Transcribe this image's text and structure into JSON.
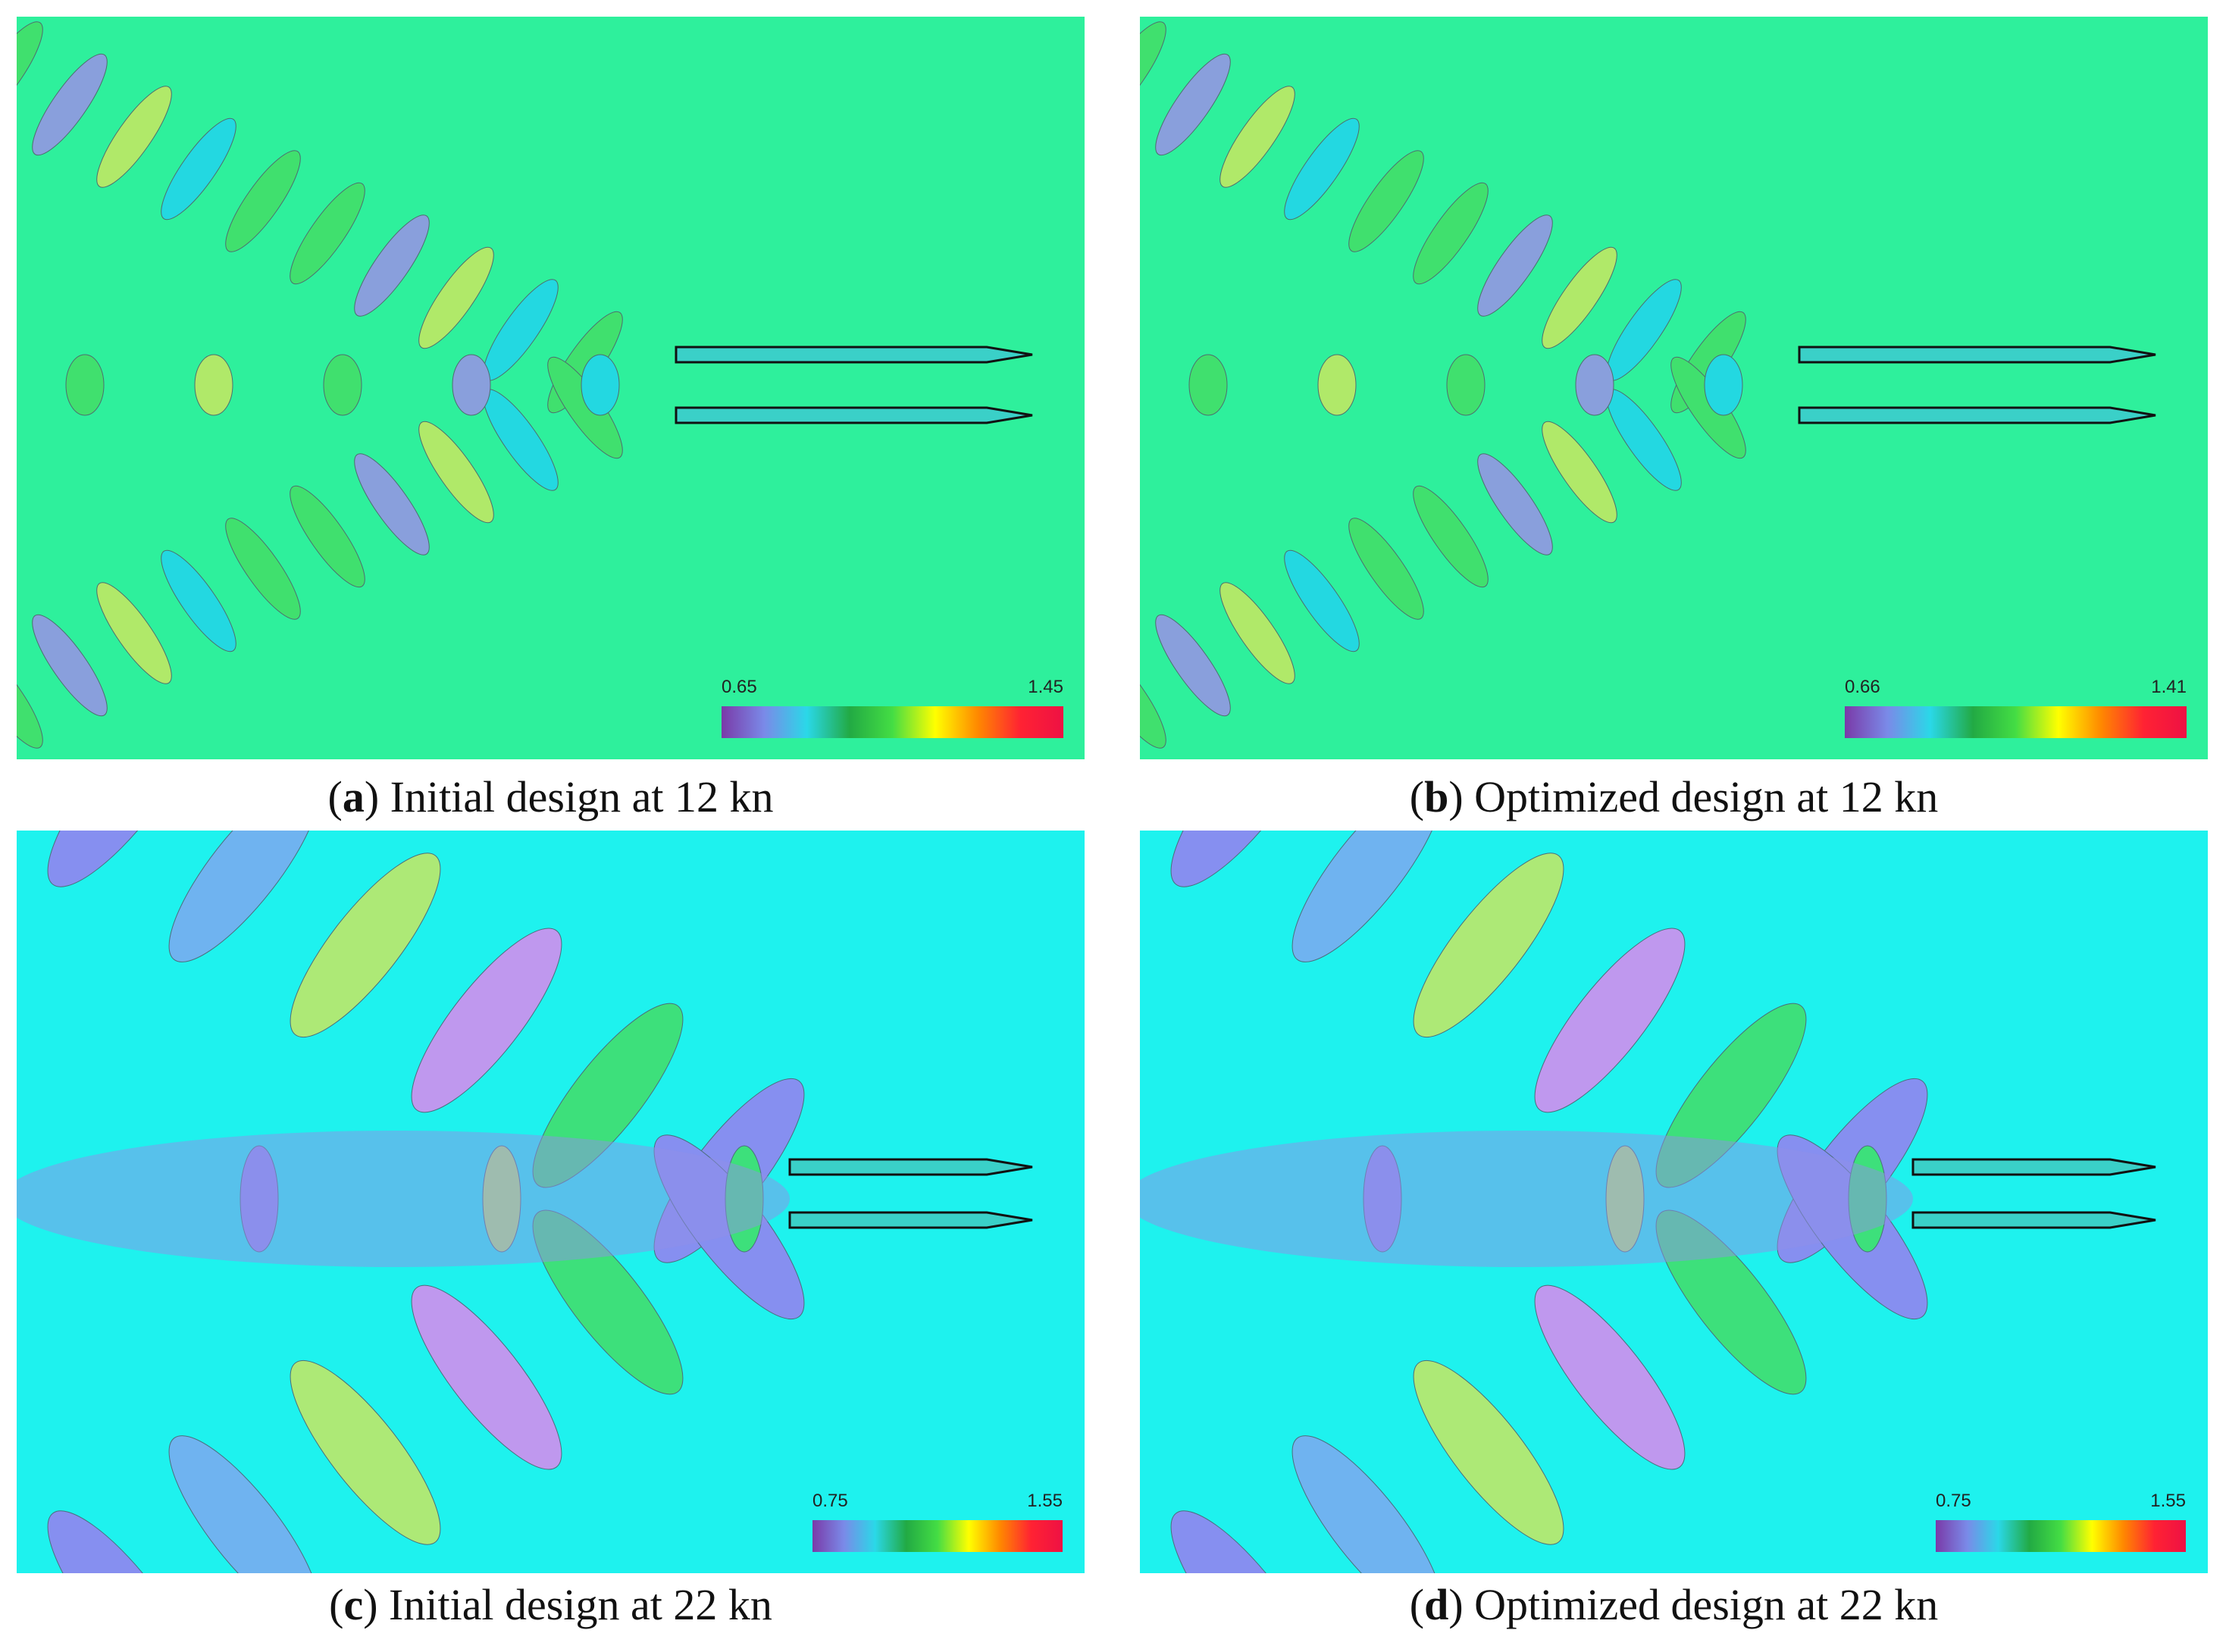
{
  "panels": [
    {
      "caption": [
        "(",
        "a",
        ") Initial design at 12 kn"
      ],
      "colorbar": {
        "min": "0.65",
        "max": "1.45"
      }
    },
    {
      "caption": [
        "(",
        "b",
        ") Optimized design at 12 kn"
      ],
      "colorbar": {
        "min": "0.66",
        "max": "1.41"
      }
    },
    {
      "caption": [
        "(",
        "c",
        ") Initial design at 22 kn"
      ],
      "colorbar": {
        "min": "0.75",
        "max": "1.55"
      }
    },
    {
      "caption": [
        "(",
        "d",
        ") Optimized design at 22 kn"
      ],
      "colorbar": {
        "min": "0.75",
        "max": "1.55"
      }
    }
  ]
}
